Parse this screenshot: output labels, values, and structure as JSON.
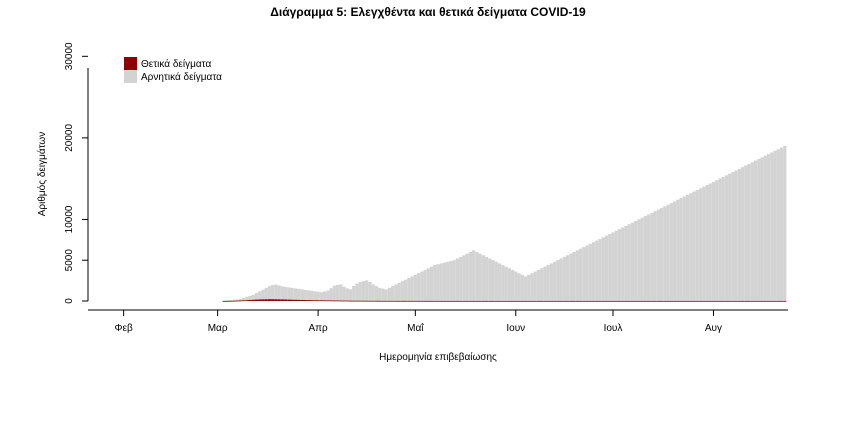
{
  "chart_data": {
    "type": "bar",
    "title": "Διάγραμμα 5: Ελεγχθέντα και θετικά δείγματα COVID-19",
    "xlabel": "Ημερομηνία επιβεβαίωσης",
    "ylabel": "Αριθμός δειγμάτων",
    "stacked": true,
    "ylim": [
      0,
      32000
    ],
    "xlim": [
      "2020-01-21",
      "2020-08-24"
    ],
    "y_ticks": [
      0,
      5000,
      10000,
      20000,
      30000
    ],
    "x_ticks": [
      {
        "date": "2020-02-01",
        "label": "Φεβ"
      },
      {
        "date": "2020-03-01",
        "label": "Μαρ"
      },
      {
        "date": "2020-04-01",
        "label": "Απρ"
      },
      {
        "date": "2020-05-01",
        "label": "Μαΐ"
      },
      {
        "date": "2020-06-01",
        "label": "Ιουν"
      },
      {
        "date": "2020-07-01",
        "label": "Ιουλ"
      },
      {
        "date": "2020-08-01",
        "label": "Αυγ"
      }
    ],
    "legend": {
      "position": "top-left"
    },
    "series_style": [
      {
        "name": "Θετικά δείγματα",
        "color": "#8b0000"
      },
      {
        "name": "Αρνητικά δείγματα",
        "color": "#d3d3d3"
      }
    ],
    "segments": [
      {
        "start": "2020-01-24",
        "positive": [
          0,
          0,
          0,
          0,
          0,
          0,
          0,
          0,
          0,
          0,
          0,
          0,
          0,
          0,
          0,
          0,
          0,
          0,
          0,
          0,
          0,
          0,
          0,
          0,
          0,
          0,
          0,
          0,
          0,
          0,
          0,
          0,
          0,
          0,
          0,
          0,
          0,
          0
        ],
        "negative": [
          0,
          0,
          0,
          0,
          0,
          0,
          0,
          0,
          0,
          0,
          0,
          0,
          0,
          0,
          0,
          0,
          0,
          0,
          0,
          0,
          0,
          0,
          0,
          0,
          0,
          0,
          0,
          0,
          0,
          0,
          0,
          0,
          0,
          0,
          0,
          0,
          0,
          0
        ]
      },
      {
        "start": "2020-03-03",
        "positive": [
          10,
          15,
          20,
          30,
          45,
          60,
          80,
          100,
          130,
          150,
          170,
          190,
          200,
          210,
          220,
          220,
          210,
          200,
          190,
          180,
          170,
          160,
          150,
          140,
          130,
          120,
          110,
          100,
          95,
          90,
          85,
          80,
          75,
          70,
          65,
          60,
          55,
          50,
          45,
          40,
          38,
          36,
          34,
          32,
          30,
          28,
          26,
          24,
          22,
          20,
          20,
          20,
          18,
          18,
          16,
          16,
          15,
          15,
          14,
          14,
          13,
          13,
          12,
          12,
          12,
          12,
          11,
          11,
          11,
          11,
          10,
          10,
          10,
          10,
          10,
          10,
          10,
          10,
          10,
          10,
          10,
          10,
          10,
          10,
          10,
          10,
          10,
          10,
          10,
          10,
          10,
          10,
          10,
          10,
          10,
          10,
          10,
          10,
          10,
          10,
          10,
          10,
          10,
          10,
          10,
          10,
          10,
          10,
          10,
          10,
          10,
          10,
          10,
          10,
          10,
          10,
          10,
          10,
          10,
          10,
          10,
          10,
          10,
          10,
          10,
          10,
          10,
          10,
          10,
          10,
          10,
          10,
          10,
          10,
          10,
          10,
          10,
          10,
          10,
          10,
          10,
          10,
          10,
          10,
          10,
          10,
          10,
          10,
          10,
          10,
          10,
          10,
          10,
          10,
          10,
          10,
          10,
          10,
          10,
          10,
          10,
          10,
          10,
          10,
          10,
          10,
          10,
          10,
          10,
          10,
          10,
          10,
          10,
          10,
          10,
          10,
          10
        ],
        "negative": [
          50,
          80,
          100,
          120,
          150,
          200,
          300,
          400,
          500,
          600,
          800,
          1000,
          1200,
          1400,
          1600,
          1750,
          1800,
          1700,
          1600,
          1550,
          1500,
          1450,
          1400,
          1350,
          1300,
          1250,
          1200,
          1150,
          1100,
          1050,
          1000,
          1100,
          1200,
          1500,
          1800,
          1900,
          2000,
          1700,
          1500,
          1400,
          1800,
          2100,
          2300,
          2400,
          2500,
          2300,
          2000,
          1800,
          1600,
          1500,
          1400,
          1600,
          1800,
          2000,
          2200,
          2400,
          2600,
          2800,
          3000,
          3200,
          3400,
          3600,
          3800,
          4000,
          4200,
          4400,
          4500,
          4600,
          4700,
          4800,
          4900,
          5000,
          5200,
          5400,
          5600,
          5800,
          6000,
          6200,
          6000,
          5800,
          5600,
          5400,
          5200,
          5000,
          4800,
          4600,
          4400,
          4200,
          4000,
          3800,
          3600,
          3400,
          3200,
          3000,
          3200,
          3400,
          3600,
          3800,
          4000,
          4200,
          4400,
          4600,
          4800,
          5000,
          5200,
          5400,
          5600,
          5800,
          6000,
          6200,
          6400,
          6600,
          6800,
          7000,
          7200,
          7400,
          7600,
          7800,
          8000,
          8200,
          8400,
          8600,
          8800,
          9000,
          9200,
          9400,
          9600,
          9800,
          10000,
          10200,
          10400,
          10600,
          10800,
          11000,
          11200,
          11400,
          11600,
          11800,
          12000,
          12200,
          12400,
          12600,
          12800,
          13000,
          13200,
          13400,
          13600,
          13800,
          14000,
          14200,
          14400,
          14600,
          14800,
          15000,
          15200,
          15400,
          15600,
          15800,
          16000,
          16200,
          16400,
          16600,
          16800,
          17000,
          17200,
          17400,
          17600,
          17800,
          18000,
          18200,
          18400,
          18600,
          18800,
          19000
        ]
      }
    ],
    "notes_hidden": false
  }
}
